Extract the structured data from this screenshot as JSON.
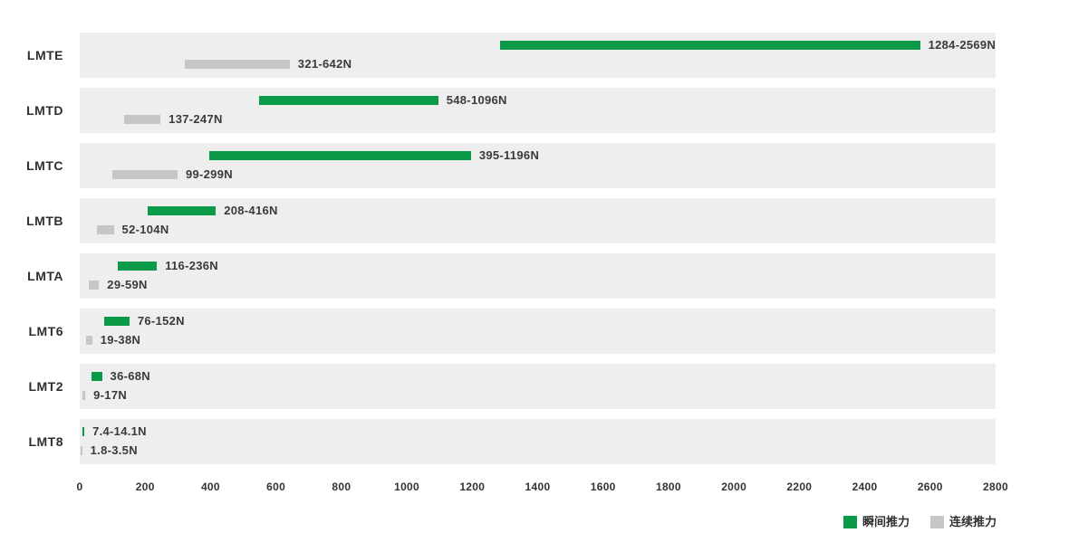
{
  "chart_data": {
    "type": "bar",
    "subtype": "horizontal-range-bar",
    "title": "",
    "xlabel": "",
    "ylabel": "",
    "grid": false,
    "row_background": "#eeeeee",
    "legend_position": "bottom-right",
    "categories": [
      "LMTE",
      "LMTD",
      "LMTC",
      "LMTB",
      "LMTA",
      "LMT6",
      "LMT2",
      "LMT8"
    ],
    "series": [
      {
        "name": "瞬间推力",
        "color": "#0b9a48",
        "ranges": [
          [
            1284,
            2569
          ],
          [
            548,
            1096
          ],
          [
            395,
            1196
          ],
          [
            208,
            416
          ],
          [
            116,
            236
          ],
          [
            76,
            152
          ],
          [
            36,
            68
          ],
          [
            7.4,
            14.1
          ]
        ],
        "labels": [
          "1284-2569N",
          "548-1096N",
          "395-1196N",
          "208-416N",
          "116-236N",
          "76-152N",
          "36-68N",
          "7.4-14.1N"
        ]
      },
      {
        "name": "连续推力",
        "color": "#c6c6c6",
        "ranges": [
          [
            321,
            642
          ],
          [
            137,
            247
          ],
          [
            99,
            299
          ],
          [
            52,
            104
          ],
          [
            29,
            59
          ],
          [
            19,
            38
          ],
          [
            9,
            17
          ],
          [
            1.8,
            3.5
          ]
        ],
        "labels": [
          "321-642N",
          "137-247N",
          "99-299N",
          "52-104N",
          "29-59N",
          "19-38N",
          "9-17N",
          "1.8-3.5N"
        ]
      }
    ],
    "axis": {
      "min": 0,
      "max": 2800,
      "step": 200,
      "ticks": [
        "0",
        "200",
        "400",
        "600",
        "800",
        "1000",
        "1200",
        "1400",
        "1600",
        "1800",
        "2000",
        "2200",
        "2400",
        "2600",
        "2800"
      ]
    }
  },
  "legend": {
    "instantaneous_label": "瞬间推力",
    "continuous_label": "连续推力"
  },
  "colors": {
    "instantaneous": "#0b9a48",
    "continuous": "#c6c6c6",
    "row_band": "#eeeeee",
    "text": "#2f2f2f"
  }
}
